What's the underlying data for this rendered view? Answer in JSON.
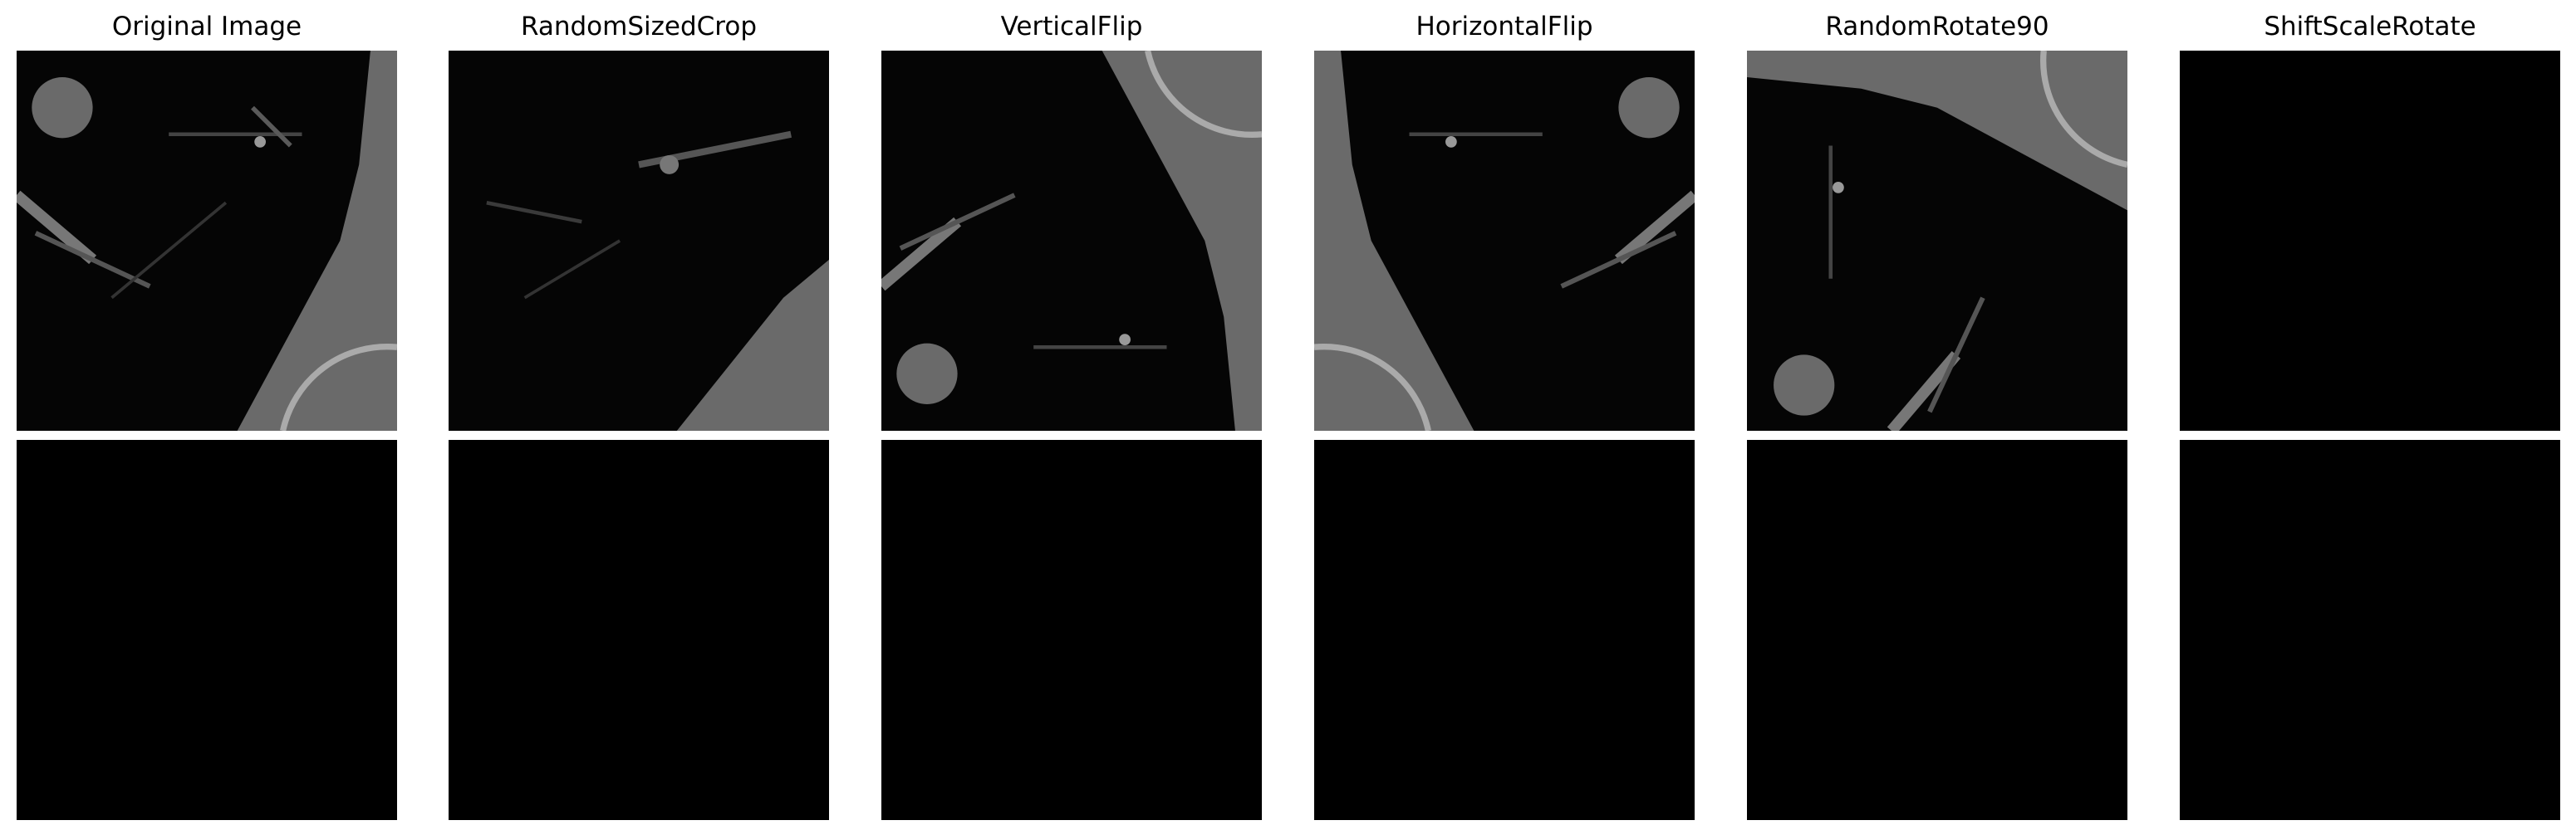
{
  "columns": [
    {
      "title": "Original Image",
      "image": "ct-lung-original-icon",
      "mask": "empty-mask"
    },
    {
      "title": "RandomSizedCrop",
      "image": "ct-lung-crop-icon",
      "mask": "empty-mask"
    },
    {
      "title": "VerticalFlip",
      "image": "ct-lung-vflip-icon",
      "mask": "empty-mask"
    },
    {
      "title": "HorizontalFlip",
      "image": "ct-lung-hflip-icon",
      "mask": "empty-mask"
    },
    {
      "title": "RandomRotate90",
      "image": "ct-lung-rot90-icon",
      "mask": "empty-mask"
    },
    {
      "title": "ShiftScaleRotate",
      "image": "empty-image",
      "mask": "empty-mask"
    }
  ],
  "colors": {
    "background": "#ffffff",
    "panel": "#000000",
    "tissue": "#6e6e6e",
    "vessel": "#7a7a7a"
  }
}
